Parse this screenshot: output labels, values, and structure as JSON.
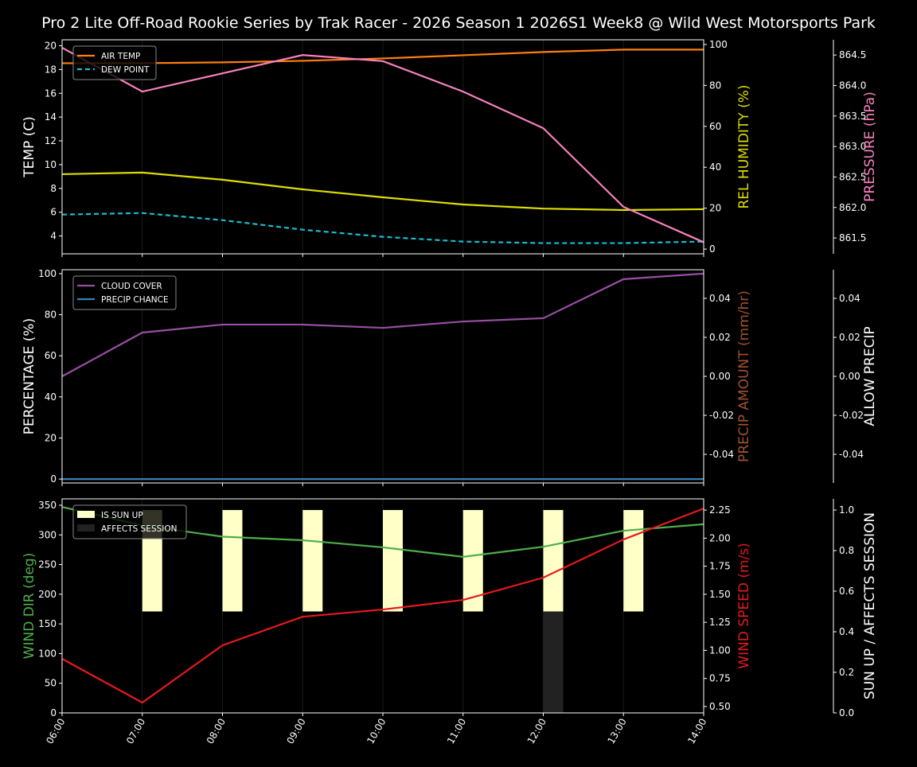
{
  "chart_data": [
    {
      "type": "line",
      "title": "Pro 2 Lite Off-Road Rookie Series by Trak Racer - 2026 Season 1 2026S1 Week8 @ Wild West Motorsports Park",
      "x": [
        "06:00",
        "07:00",
        "08:00",
        "09:00",
        "10:00",
        "11:00",
        "12:00",
        "13:00",
        "14:00"
      ],
      "ylabel": "TEMP (C)",
      "ylim": [
        2.5,
        20.5
      ],
      "yticks": [
        4,
        6,
        8,
        10,
        12,
        14,
        16,
        18,
        20
      ],
      "y2label": "REL HUMIDITY (%)",
      "y2lim": [
        -2.3,
        102.3
      ],
      "y2ticks": [
        0,
        20,
        40,
        60,
        80,
        100
      ],
      "y3label": "PRESSURE (hPa)",
      "y3lim": [
        861.24,
        864.75
      ],
      "y3ticks": [
        "861.5",
        "862.0",
        "862.5",
        "863.0",
        "863.5",
        "864.0",
        "864.5"
      ],
      "legend": "top-left",
      "series": [
        {
          "name": "AIR TEMP",
          "axis": "y",
          "color": "#ff7f0e",
          "dash": false,
          "values": [
            18.53,
            18.53,
            18.6,
            18.73,
            18.93,
            19.2,
            19.47,
            19.67,
            19.67
          ]
        },
        {
          "name": "DEW POINT",
          "axis": "y",
          "color": "#17becf",
          "dash": true,
          "values": [
            5.8,
            5.93,
            5.33,
            4.53,
            3.93,
            3.53,
            3.4,
            3.4,
            3.53
          ]
        },
        {
          "axis": "y2",
          "color": "#dddd00",
          "dash": false,
          "values": [
            36.6,
            37.4,
            33.9,
            29.2,
            25.3,
            21.8,
            19.8,
            19.1,
            19.5
          ]
        },
        {
          "axis": "y3",
          "color": "#f781bf",
          "dash": false,
          "values": [
            864.62,
            863.9,
            864.2,
            864.5,
            864.4,
            863.9,
            863.3,
            862.01,
            861.43
          ]
        }
      ]
    },
    {
      "type": "line",
      "x": [
        "06:00",
        "07:00",
        "08:00",
        "09:00",
        "10:00",
        "11:00",
        "12:00",
        "13:00",
        "14:00"
      ],
      "ylabel": "PERCENTAGE (%)",
      "ylim": [
        -1.9,
        101.9
      ],
      "yticks": [
        0,
        20,
        40,
        60,
        80,
        100
      ],
      "y2label": "PRECIP AMOUNT (mm/hr)",
      "y2lim": [
        -0.0547,
        0.0547
      ],
      "y2ticks": [
        "-0.04",
        "-0.02",
        "0.00",
        "0.02",
        "0.04"
      ],
      "y3label": "ALLOW PRECIP",
      "y3lim": [
        -0.0547,
        0.0547
      ],
      "y3ticks": [
        "-0.04",
        "-0.02",
        "0.00",
        "0.02",
        "0.04"
      ],
      "legend": "top-left",
      "series": [
        {
          "name": "CLOUD COVER",
          "axis": "y",
          "color": "#984ea3",
          "dash": false,
          "values": [
            50,
            71.3,
            75.2,
            75.2,
            73.6,
            76.7,
            78.3,
            97.3,
            100
          ]
        },
        {
          "name": "PRECIP CHANCE",
          "axis": "y",
          "color": "#377eb8",
          "dash": false,
          "values": [
            0,
            0,
            0,
            0,
            0,
            0,
            0,
            0,
            0
          ]
        }
      ]
    },
    {
      "type": "line",
      "x": [
        "06:00",
        "07:00",
        "08:00",
        "09:00",
        "10:00",
        "11:00",
        "12:00",
        "13:00",
        "14:00"
      ],
      "ylabel": "WIND DIR (deg)",
      "ylim": [
        0,
        360.7
      ],
      "yticks": [
        0,
        50,
        100,
        150,
        200,
        250,
        300,
        350
      ],
      "y2label": "WIND SPEED (m/s)",
      "y2lim": [
        0.443,
        2.35
      ],
      "y2ticks": [
        "0.50",
        "0.75",
        "1.00",
        "1.25",
        "1.50",
        "1.75",
        "2.00",
        "2.25"
      ],
      "y3label": "SUN UP / AFFECTS SESSION",
      "y3lim": [
        0,
        1.055
      ],
      "y3ticks": [
        "0.0",
        "0.2",
        "0.4",
        "0.6",
        "0.8",
        "1.0"
      ],
      "legend": "top-left",
      "series": [
        {
          "axis": "y",
          "color": "#4daf4a",
          "dash": false,
          "values": [
            347,
            316,
            297,
            291,
            279,
            263,
            280,
            307,
            318
          ]
        },
        {
          "axis": "y2",
          "color": "#e41a1c",
          "dash": false,
          "values": [
            0.925,
            0.535,
            1.045,
            1.3,
            1.364,
            1.449,
            1.648,
            1.988,
            2.264
          ]
        }
      ],
      "bars": [
        {
          "name": "IS SUN UP",
          "color": "#ffffc8",
          "bottom": 0.5,
          "values": [
            0,
            1,
            1,
            1,
            1,
            1,
            1,
            1,
            0
          ]
        },
        {
          "name": "AFFECTS SESSION",
          "color": "#222222",
          "bottom": 0,
          "values": [
            0,
            0,
            0,
            0,
            0,
            0,
            1,
            0,
            0
          ]
        }
      ]
    }
  ]
}
